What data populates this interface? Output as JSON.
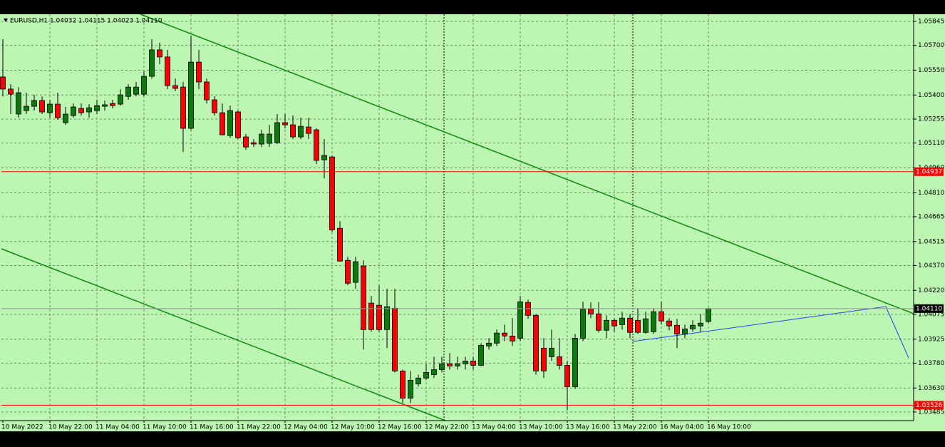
{
  "chart_data": {
    "type": "candlestick",
    "title": "EURUSD,H1  1.04032 1.04115 1.04023 1.04110",
    "categories": [
      "10 May 2022",
      null,
      null,
      null,
      null,
      null,
      "10 May 22:00",
      null,
      null,
      null,
      null,
      null,
      "11 May 04:00",
      null,
      null,
      null,
      null,
      null,
      "11 May 10:00",
      null,
      null,
      null,
      null,
      null,
      "11 May 16:00",
      null,
      null,
      null,
      null,
      null,
      "11 May 22:00",
      null,
      null,
      null,
      null,
      null,
      "12 May 04:00",
      null,
      null,
      null,
      null,
      null,
      "12 May 10:00",
      null,
      null,
      null,
      null,
      null,
      "12 May 16:00",
      null,
      null,
      null,
      null,
      null,
      "12 May 22:00",
      null,
      null,
      null,
      null,
      null,
      "13 May 04:00",
      null,
      null,
      null,
      null,
      null,
      "13 May 10:00",
      null,
      null,
      null,
      null,
      null,
      "13 May 16:00",
      null,
      null,
      null,
      null,
      null,
      "13 May 22:00",
      null,
      null,
      null,
      null,
      null,
      "16 May 04:00",
      null,
      null,
      null,
      null,
      null,
      "16 May 10:00"
    ],
    "open": [
      1.05509,
      1.05436,
      1.05285,
      1.05306,
      1.05332,
      1.05367,
      1.05293,
      1.05345,
      1.05233,
      1.05276,
      1.05319,
      1.05298,
      1.05306,
      1.05332,
      1.05349,
      1.05345,
      1.05392,
      1.05405,
      1.05405,
      1.05513,
      1.05673,
      1.0563,
      1.05457,
      1.05448,
      1.05199,
      1.05599,
      1.05479,
      1.05371,
      1.05293,
      1.05155,
      1.05298,
      1.05147,
      1.05112,
      1.05104,
      1.05108,
      1.05112,
      1.05233,
      1.0522,
      1.05147,
      1.05207,
      1.0519,
      1.05009,
      1.05026,
      1.04595,
      1.04401,
      1.04268,
      1.04367,
      1.04143,
      1.0413,
      1.03983,
      1.04112,
      1.03733,
      1.03569,
      1.03655,
      1.0369,
      1.03711,
      1.03741,
      1.03776,
      1.03763,
      1.03776,
      1.03793,
      1.03767,
      1.03884,
      1.03901,
      1.03962,
      1.03944,
      1.03931,
      1.04147,
      1.04069,
      1.03871,
      1.03819,
      1.03819,
      1.03767,
      1.03638,
      1.03931,
      1.04108,
      1.04078,
      1.03979,
      1.04039,
      1.04013,
      1.04052,
      1.04039,
      1.03966,
      1.0397,
      1.04091,
      1.04035,
      1.04009,
      1.03957,
      1.03987,
      1.04005,
      1.04032
    ],
    "high": [
      1.05737,
      1.05466,
      1.05448,
      1.05414,
      1.05401,
      1.05392,
      1.05371,
      1.05414,
      1.05328,
      1.05349,
      1.05349,
      1.05345,
      1.05371,
      1.05367,
      1.05371,
      1.05436,
      1.05466,
      1.05479,
      1.05543,
      1.05737,
      1.05716,
      1.05673,
      1.055,
      1.05479,
      1.05759,
      1.05673,
      1.055,
      1.05392,
      1.05349,
      1.05336,
      1.05306,
      1.05164,
      1.05134,
      1.0519,
      1.0522,
      1.05285,
      1.05285,
      1.05276,
      1.05263,
      1.05263,
      1.05199,
      1.05134,
      1.05035,
      1.04638,
      1.04423,
      1.04423,
      1.04401,
      1.04186,
      1.0425,
      1.04229,
      1.04229,
      1.03741,
      1.03733,
      1.03711,
      1.03776,
      1.03819,
      1.03819,
      1.03841,
      1.03819,
      1.03819,
      1.03819,
      1.03901,
      1.03931,
      1.03983,
      1.04013,
      1.04052,
      1.04186,
      1.04164,
      1.04078,
      1.03931,
      1.03983,
      1.03931,
      1.03793,
      1.03957,
      1.04151,
      1.04147,
      1.04147,
      1.04069,
      1.04052,
      1.04091,
      1.04078,
      1.04112,
      1.04091,
      1.04108,
      1.04151,
      1.04052,
      1.04048,
      1.04013,
      1.04039,
      1.04078,
      1.04115
    ],
    "low": [
      1.05392,
      1.05285,
      1.05263,
      1.05285,
      1.05306,
      1.05285,
      1.05263,
      1.0525,
      1.0522,
      1.05263,
      1.05276,
      1.05263,
      1.05285,
      1.05306,
      1.05319,
      1.05336,
      1.05371,
      1.05392,
      1.05392,
      1.055,
      1.05586,
      1.05436,
      1.05423,
      1.05056,
      1.0519,
      1.05436,
      1.05349,
      1.05276,
      1.05155,
      1.05142,
      1.05134,
      1.05069,
      1.05086,
      1.05086,
      1.05086,
      1.05104,
      1.05199,
      1.05134,
      1.05134,
      1.05134,
      1.04983,
      1.04897,
      1.04573,
      1.04393,
      1.0425,
      1.04229,
      1.03862,
      1.0397,
      1.0397,
      1.03871,
      1.03724,
      1.03539,
      1.03539,
      1.03638,
      1.03677,
      1.0369,
      1.03724,
      1.03741,
      1.03741,
      1.03741,
      1.03741,
      1.03763,
      1.03862,
      1.03884,
      1.03914,
      1.03884,
      1.03914,
      1.04048,
      1.03711,
      1.0369,
      1.03793,
      1.03741,
      1.03496,
      1.03625,
      1.03914,
      1.04052,
      1.03966,
      1.03931,
      1.0397,
      1.03983,
      1.03931,
      1.03957,
      1.03957,
      1.03957,
      1.04013,
      1.03979,
      1.03871,
      1.03931,
      1.0397,
      1.0397,
      1.04023
    ],
    "close": [
      1.05436,
      1.05405,
      1.05414,
      1.05332,
      1.05367,
      1.05298,
      1.05345,
      1.05263,
      1.05285,
      1.05328,
      1.05293,
      1.05323,
      1.05336,
      1.05341,
      1.05336,
      1.05401,
      1.05448,
      1.05448,
      1.05513,
      1.05673,
      1.0563,
      1.05457,
      1.0544,
      1.05199,
      1.05599,
      1.05479,
      1.05371,
      1.05293,
      1.0516,
      1.05306,
      1.05142,
      1.05086,
      1.05104,
      1.05164,
      1.05164,
      1.05233,
      1.0522,
      1.05147,
      1.05211,
      1.05168,
      1.05005,
      1.05035,
      1.04586,
      1.04397,
      1.04263,
      1.04393,
      1.03983,
      1.03983,
      1.03983,
      1.04121,
      1.03733,
      1.03569,
      1.03677,
      1.0369,
      1.03724,
      1.03741,
      1.03776,
      1.03763,
      1.03776,
      1.03793,
      1.03767,
      1.03888,
      1.03901,
      1.03962,
      1.03944,
      1.03914,
      1.04151,
      1.04069,
      1.03733,
      1.03733,
      1.03871,
      1.03767,
      1.03638,
      1.03931,
      1.04108,
      1.04078,
      1.03979,
      1.04039,
      1.04005,
      1.04052,
      1.03966,
      1.03966,
      1.04048,
      1.04091,
      1.04035,
      1.04005,
      1.03957,
      1.03987,
      1.04009,
      1.04022,
      1.0411
    ],
    "up_color": "#0b7a0b",
    "down_color": "#ff0000",
    "ylim": [
      1.03433,
      1.05888
    ],
    "yticks": [
      1.05845,
      {
        "value": 1.057,
        "label": "1.05700"
      },
      {
        "value": 1.0555,
        "label": "1.05550"
      },
      {
        "value": 1.054,
        "label": "1.05400"
      },
      1.05255,
      {
        "value": 1.0511,
        "label": "1.05110"
      },
      {
        "value": 1.0496,
        "label": "1.04960"
      },
      {
        "value": 1.0481,
        "label": "1.04810"
      },
      1.04665,
      1.04515,
      {
        "value": 1.0437,
        "label": "1.04370"
      },
      {
        "value": 1.0422,
        "label": "1.04220"
      },
      1.04075,
      1.03925,
      {
        "value": 1.0378,
        "label": "1.03780"
      },
      {
        "value": 1.0363,
        "label": "1.03630"
      },
      1.03485
    ],
    "grid": true,
    "levels": [
      {
        "value": 1.04937,
        "color": "#ff0000"
      },
      {
        "value": 1.03526,
        "color": "#ff0000"
      }
    ],
    "bid": {
      "value": 1.0411,
      "label": "1.04110",
      "color": "#8a9a8a"
    }
  }
}
